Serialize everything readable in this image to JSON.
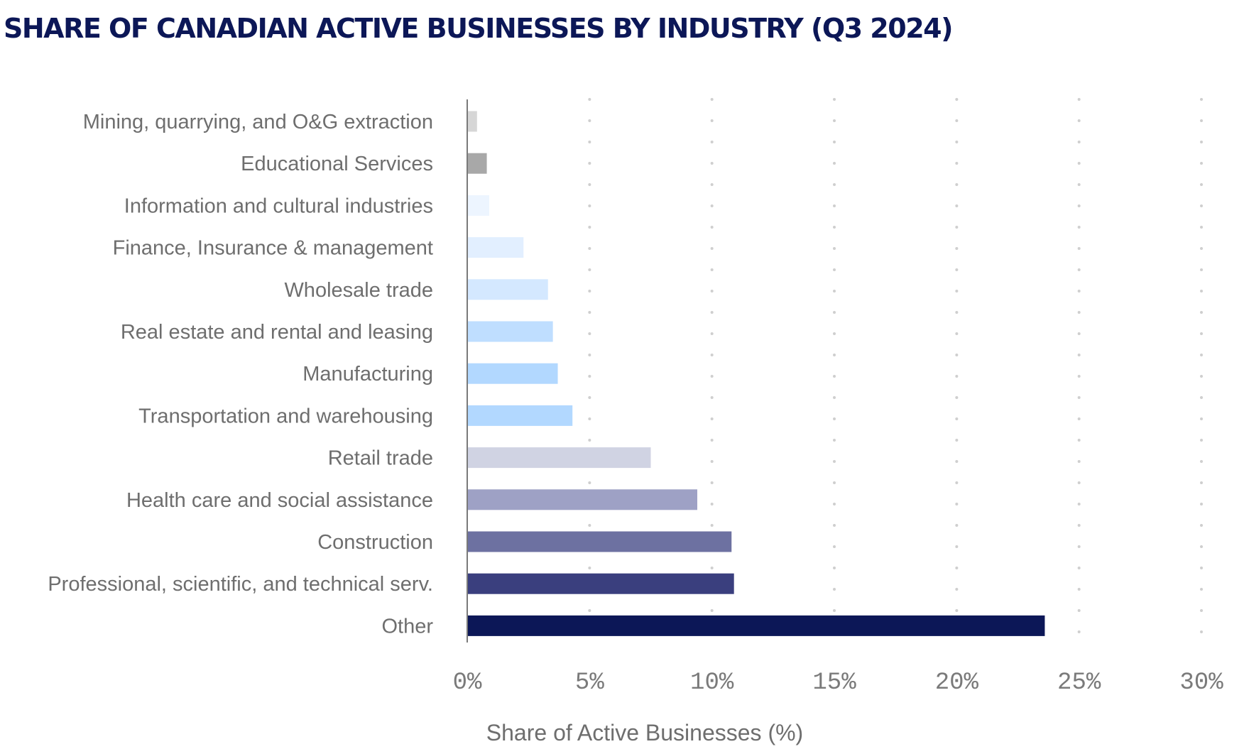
{
  "chart_data": {
    "type": "bar",
    "orientation": "horizontal",
    "title": "SHARE OF CANADIAN ACTIVE BUSINESSES BY INDUSTRY (Q3 2024)",
    "xlabel": "Share of Active Businesses (%)",
    "ylabel": "",
    "xlim": [
      0,
      30
    ],
    "xticks": [
      0,
      5,
      10,
      15,
      20,
      25,
      30
    ],
    "xtick_labels": [
      "0%",
      "5%",
      "10%",
      "15%",
      "20%",
      "25%",
      "30%"
    ],
    "grid": "vertical dotted",
    "legend": "none",
    "categories": [
      "Mining, quarrying, and O&G extraction",
      "Educational Services",
      "Information and cultural industries",
      "Finance, Insurance & management",
      "Wholesale trade",
      "Real estate and rental and leasing",
      "Manufacturing",
      "Transportation and warehousing",
      "Retail trade",
      "Health care and social assistance",
      "Construction",
      "Professional, scientific, and technical serv.",
      "Other"
    ],
    "values": [
      0.4,
      0.8,
      0.9,
      2.3,
      3.3,
      3.5,
      3.7,
      4.3,
      7.5,
      9.4,
      10.8,
      10.9,
      23.6
    ],
    "colors": [
      "#d6d6d6",
      "#a8a8a8",
      "#edf5ff",
      "#e2efff",
      "#d4e8ff",
      "#bfdeff",
      "#b2d8ff",
      "#b2d8ff",
      "#d0d3e3",
      "#9ea1c5",
      "#6d71a1",
      "#3a3f7e",
      "#0c1757"
    ]
  }
}
